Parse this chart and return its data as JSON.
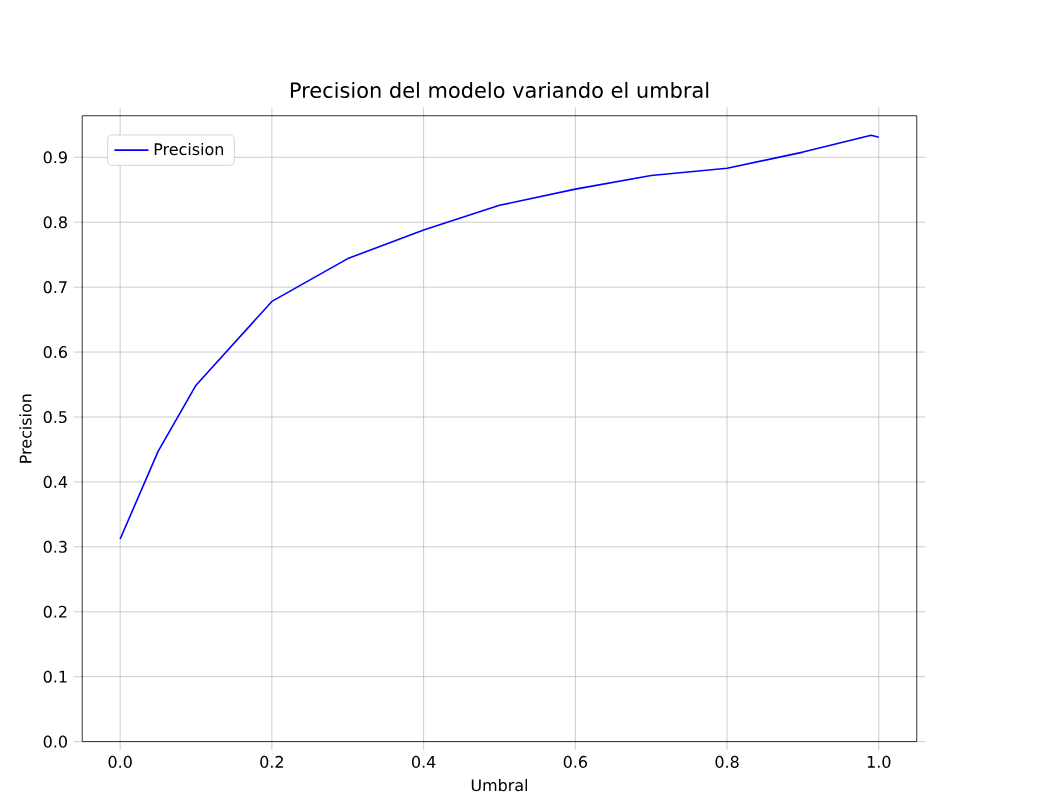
{
  "chart_data": {
    "type": "line",
    "title": "Precision del modelo variando el umbral",
    "xlabel": "Umbral",
    "ylabel": "Precision",
    "x": [
      0,
      0.05,
      0.1,
      0.2,
      0.3,
      0.4,
      0.5,
      0.6,
      0.7,
      0.8,
      0.9,
      0.99,
      1.0
    ],
    "series": [
      {
        "name": "Precision",
        "color": "#0000ff",
        "values": [
          0.312,
          0.447,
          0.549,
          0.678,
          0.744,
          0.788,
          0.826,
          0.851,
          0.872,
          0.883,
          0.908,
          0.934,
          0.931
        ]
      }
    ],
    "xlim": [
      -0.05,
      1.05
    ],
    "ylim": [
      0,
      0.964
    ],
    "xticks": [
      {
        "value": 0,
        "label": "0.0"
      },
      0.2,
      0.4,
      0.6,
      0.8,
      {
        "value": 1,
        "label": "1.0"
      }
    ],
    "yticks": [
      {
        "value": 0,
        "label": "0.0"
      },
      0.1,
      0.2,
      0.3,
      0.4,
      0.5,
      0.6,
      0.7,
      0.8,
      0.9
    ],
    "grid": true,
    "legend": "top left",
    "line_style": "solid",
    "marker": "none"
  }
}
